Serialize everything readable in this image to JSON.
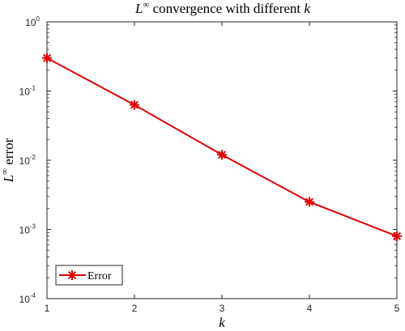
{
  "chart_data": {
    "type": "line",
    "title": {
      "main": "L",
      "sup": "∞",
      "text": " convergence with different ",
      "var": "k"
    },
    "xlabel": "k",
    "ylabel": {
      "main": "L",
      "sup": "∞",
      "text": " error"
    },
    "xlim": [
      1,
      5
    ],
    "ylim": [
      0.0001,
      1
    ],
    "yscale": "log",
    "xticks": [
      "1",
      "2",
      "3",
      "4",
      "5"
    ],
    "yticks": [
      {
        "base": "10",
        "exp": "0"
      },
      {
        "base": "10",
        "exp": "-1"
      },
      {
        "base": "10",
        "exp": "-2"
      },
      {
        "base": "10",
        "exp": "-3"
      },
      {
        "base": "10",
        "exp": "-4"
      }
    ],
    "grid": false,
    "legend_position": "bottom-left",
    "series": [
      {
        "name": "Error",
        "color": "#e00000",
        "marker": "asterisk",
        "x": [
          1,
          2,
          3,
          4,
          5
        ],
        "y": [
          0.3,
          0.063,
          0.012,
          0.0025,
          0.0008
        ]
      }
    ]
  }
}
